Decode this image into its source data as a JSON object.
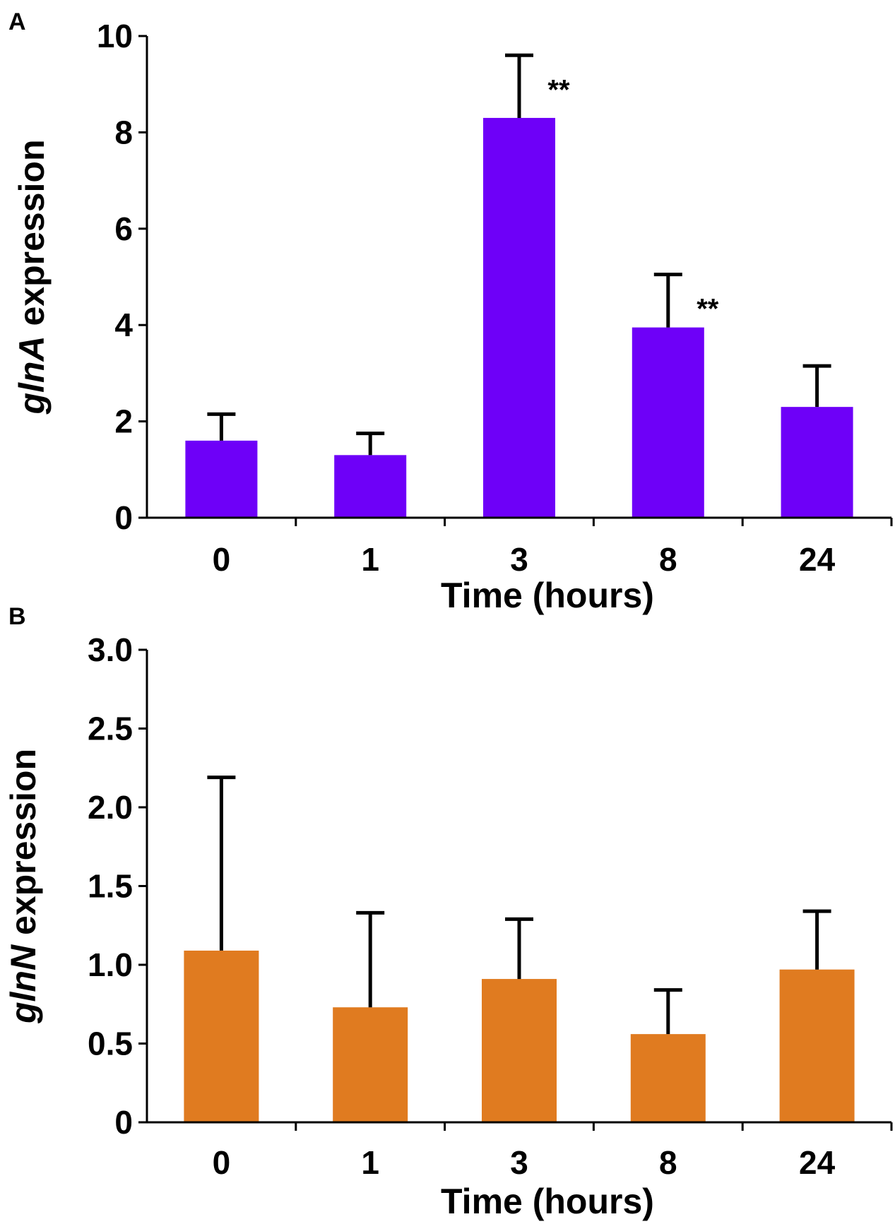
{
  "chart_data": [
    {
      "panel": "A",
      "type": "bar",
      "categories": [
        "0",
        "1",
        "3",
        "8",
        "24"
      ],
      "values": [
        1.6,
        1.3,
        8.3,
        3.95,
        2.3
      ],
      "errors": [
        0.55,
        0.45,
        1.3,
        1.1,
        0.85
      ],
      "significance": [
        "",
        "",
        "**",
        "**",
        ""
      ],
      "bar_color": "#6e00f8",
      "ylabel_italic": "glnA",
      "ylabel_rest": " expression",
      "xlabel": "Time (hours)",
      "ylim": [
        0,
        10
      ],
      "yticks": [
        0,
        2,
        4,
        6,
        8,
        10
      ],
      "ytick_labels": [
        "0",
        "2",
        "4",
        "6",
        "8",
        "10"
      ]
    },
    {
      "panel": "B",
      "type": "bar",
      "categories": [
        "0",
        "1",
        "3",
        "8",
        "24"
      ],
      "values": [
        1.09,
        0.73,
        0.91,
        0.56,
        0.97
      ],
      "errors": [
        1.1,
        0.6,
        0.38,
        0.28,
        0.37
      ],
      "significance": [
        "",
        "",
        "",
        "",
        ""
      ],
      "bar_color": "#e07b20",
      "ylabel_italic": "glnN",
      "ylabel_rest": " expression",
      "xlabel": "Time (hours)",
      "ylim": [
        0,
        3.0
      ],
      "yticks": [
        0,
        0.5,
        1.0,
        1.5,
        2.0,
        2.5,
        3.0
      ],
      "ytick_labels": [
        "0",
        "0.5",
        "1.0",
        "1.5",
        "2.0",
        "2.5",
        "3.0"
      ]
    }
  ]
}
